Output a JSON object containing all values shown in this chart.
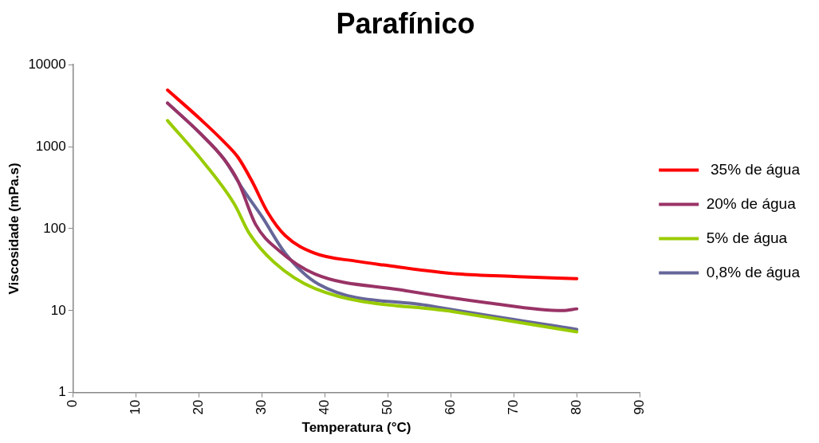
{
  "chart_data": {
    "type": "line",
    "title": "Parafínico",
    "xlabel": "Temperatura (°C)",
    "ylabel": "Viscosidade (mPa.s)",
    "xlim": [
      0,
      90
    ],
    "xticks": [
      0,
      10,
      20,
      30,
      40,
      50,
      60,
      70,
      80,
      90
    ],
    "ylim": [
      1,
      10000
    ],
    "yticks": [
      1,
      10,
      100,
      1000,
      10000
    ],
    "log": "y",
    "grid": false,
    "legend": "right",
    "marker": "none",
    "line_style": "solid",
    "series": [
      {
        "name": " 35% de água",
        "color": "#ff0000",
        "x": [
          15,
          20,
          23.7,
          26.2,
          28.4,
          30.9,
          33.7,
          38.4,
          45,
          49.3,
          61.1,
          70.7,
          80
        ],
        "values": [
          4900,
          2240,
          1200,
          740,
          380,
          158,
          82,
          50,
          40,
          36,
          28,
          26,
          24.5
        ]
      },
      {
        "name": "20% de água",
        "color": "#993366",
        "x": [
          15,
          20,
          24,
          26.2,
          29,
          32.7,
          38.4,
          51.8,
          66,
          77.8,
          80
        ],
        "values": [
          3400,
          1500,
          700,
          380,
          112,
          54,
          28,
          18,
          12.4,
          10,
          10.5
        ]
      },
      {
        "name": "5% de água",
        "color": "#99cc00",
        "x": [
          15,
          20.9,
          25.6,
          28,
          31.9,
          38.4,
          61.1,
          80
        ],
        "values": [
          2080,
          620,
          200,
          87,
          39,
          18.6,
          9.5,
          5.5
        ]
      },
      {
        "name": "0,8% de água",
        "color": "#666699",
        "x": [
          15,
          20,
          24,
          27,
          30,
          33.7,
          39,
          56.4,
          80
        ],
        "values": [
          3400,
          1500,
          700,
          300,
          140,
          50,
          21,
          11.5,
          5.9
        ]
      }
    ]
  }
}
